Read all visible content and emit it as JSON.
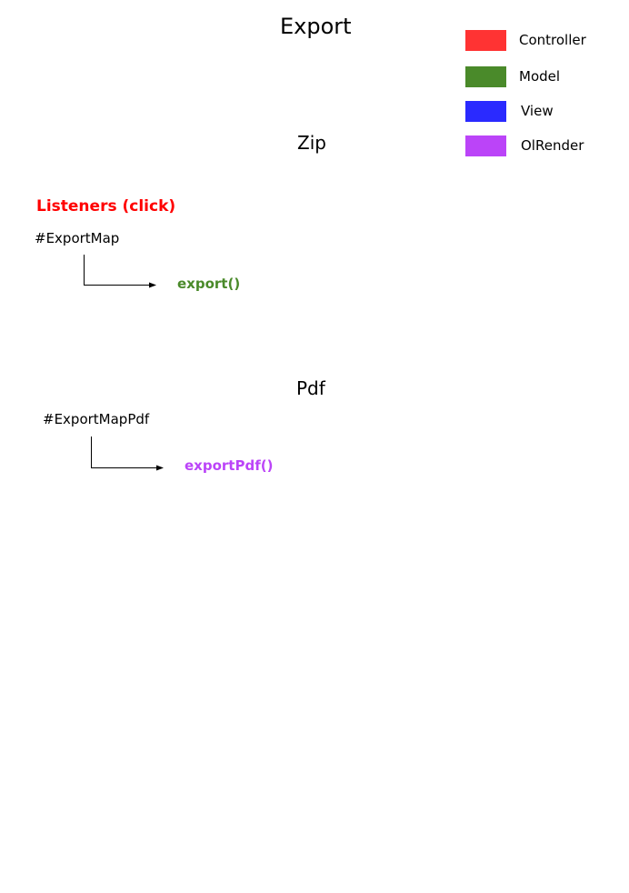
{
  "title": "Export",
  "legend": [
    {
      "label": "Controller",
      "color": "#ff3333"
    },
    {
      "label": "Model",
      "color": "#4a8a2a"
    },
    {
      "label": "View",
      "color": "#2a2aff"
    },
    {
      "label": "OlRender",
      "color": "#bb44f8"
    }
  ],
  "sections": {
    "zip": {
      "heading": "Zip",
      "listeners_label": "Listeners (click)",
      "listeners_color": "#ff0000",
      "element": "#ExportMap",
      "function": "export()",
      "function_color": "#4a8a2a"
    },
    "pdf": {
      "heading": "Pdf",
      "element": "#ExportMapPdf",
      "function": "exportPdf()",
      "function_color": "#bb44f8"
    }
  }
}
